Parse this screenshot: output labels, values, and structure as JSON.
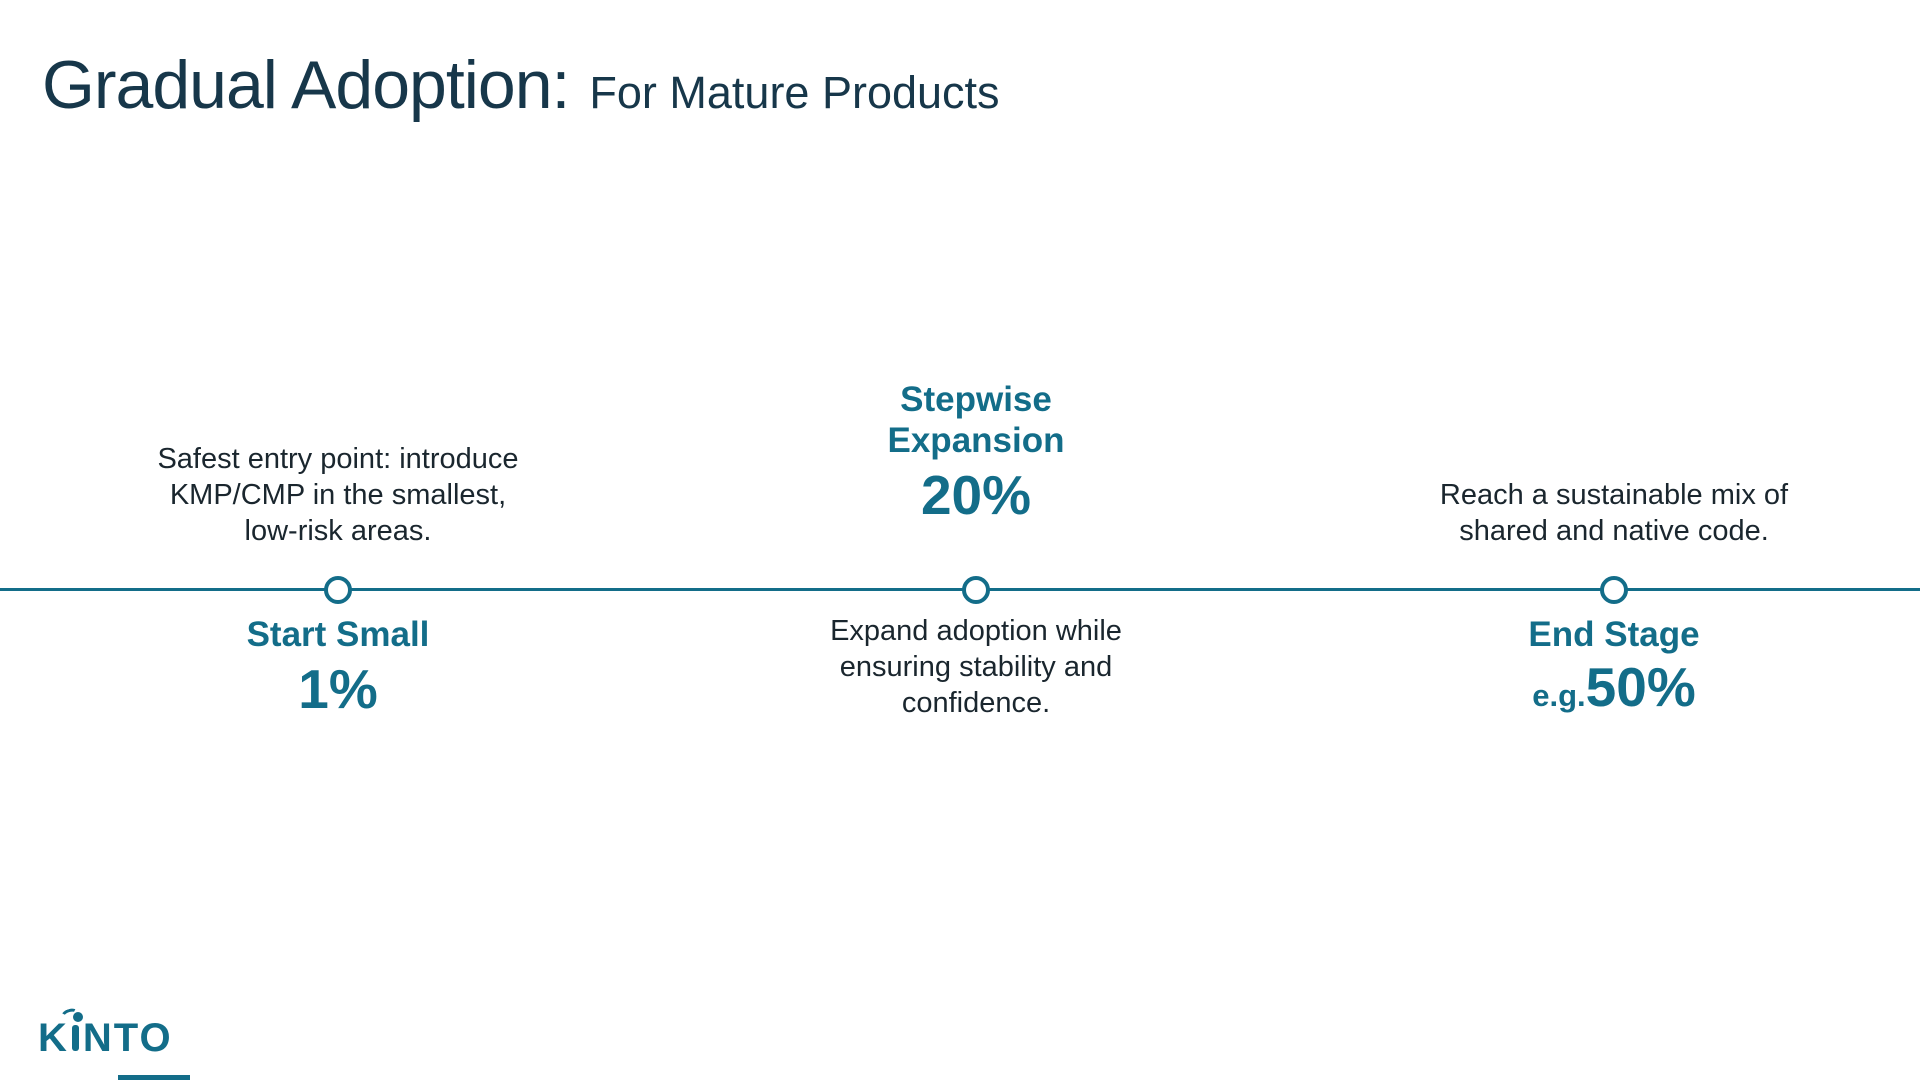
{
  "slide_title": {
    "main": "Gradual Adoption:",
    "subtitle": "For Mature Products"
  },
  "colors": {
    "accent": "#136d89",
    "title_dark": "#17374a",
    "body_dark": "#1a262e"
  },
  "timeline": {
    "milestones": [
      {
        "description": "Safest entry point: introduce KMP/CMP in the smallest, low-risk areas.",
        "label": "Start Small",
        "value": "1%",
        "description_position": "above-line",
        "label_position": "below-line"
      },
      {
        "label": "Stepwise Expansion",
        "value": "20%",
        "description": "Expand adoption while ensuring stability and confidence.",
        "description_position": "below-line",
        "label_position": "above-line"
      },
      {
        "description": "Reach a sustainable mix of shared and native code.",
        "label": "End Stage",
        "value_prefix": "e.g.",
        "value": "50%",
        "description_position": "above-line",
        "label_position": "below-line"
      }
    ]
  },
  "footer": {
    "brand": "KINTO",
    "brand_part_k": "K",
    "brand_part_rest": "NTO"
  }
}
